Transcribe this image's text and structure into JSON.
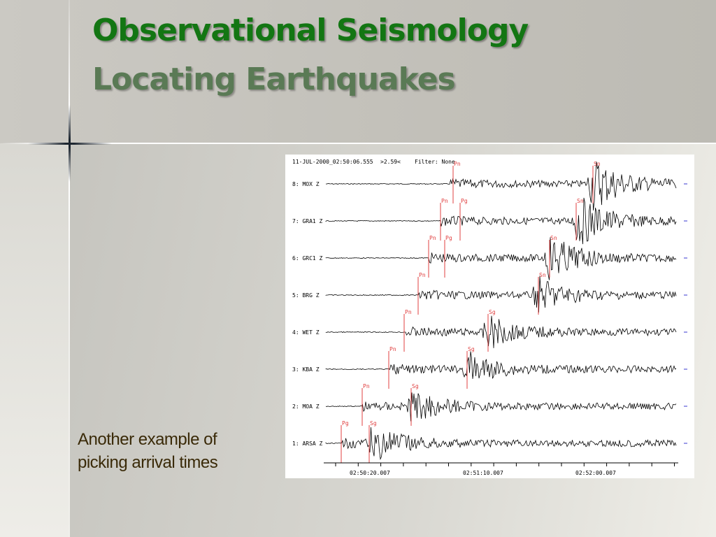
{
  "slide": {
    "title": "Observational Seismology",
    "subtitle": "Locating Earthquakes",
    "caption_lines": [
      "Another example of",
      "picking arrival times"
    ]
  },
  "seismogram": {
    "header_date": "11-JUL-2000_02:50:06.555",
    "header_scale": ">2.59<",
    "header_filter": "Filter: None",
    "x_tick_labels": [
      "02:50:20.007",
      "02:51:10.007",
      "02:52:00.007"
    ],
    "channels": [
      {
        "label": "8: MOX Z"
      },
      {
        "label": "7: GRA1 Z"
      },
      {
        "label": "6: GRC1 Z"
      },
      {
        "label": "5: BRG Z"
      },
      {
        "label": "4: WET Z"
      },
      {
        "label": "3: KBA Z"
      },
      {
        "label": "2: MOA Z"
      },
      {
        "label": "1: ARSA Z"
      }
    ],
    "picks": [
      {
        "label": "Pn"
      },
      {
        "label": "Sn"
      },
      {
        "label": "Pn"
      },
      {
        "label": "Pg"
      },
      {
        "label": "Sn"
      },
      {
        "label": "Pn"
      },
      {
        "label": "Pg"
      },
      {
        "label": "Sn"
      },
      {
        "label": "Pn"
      },
      {
        "label": "Sn"
      },
      {
        "label": "Pn"
      },
      {
        "label": "Sg"
      },
      {
        "label": "Pn"
      },
      {
        "label": "Sg"
      },
      {
        "label": "Pn"
      },
      {
        "label": "Sg"
      },
      {
        "label": "Pg"
      },
      {
        "label": "Sg"
      }
    ],
    "colors": {
      "trace": "#000000",
      "pick": "#e04040",
      "marker": "#3a3ad0"
    }
  }
}
